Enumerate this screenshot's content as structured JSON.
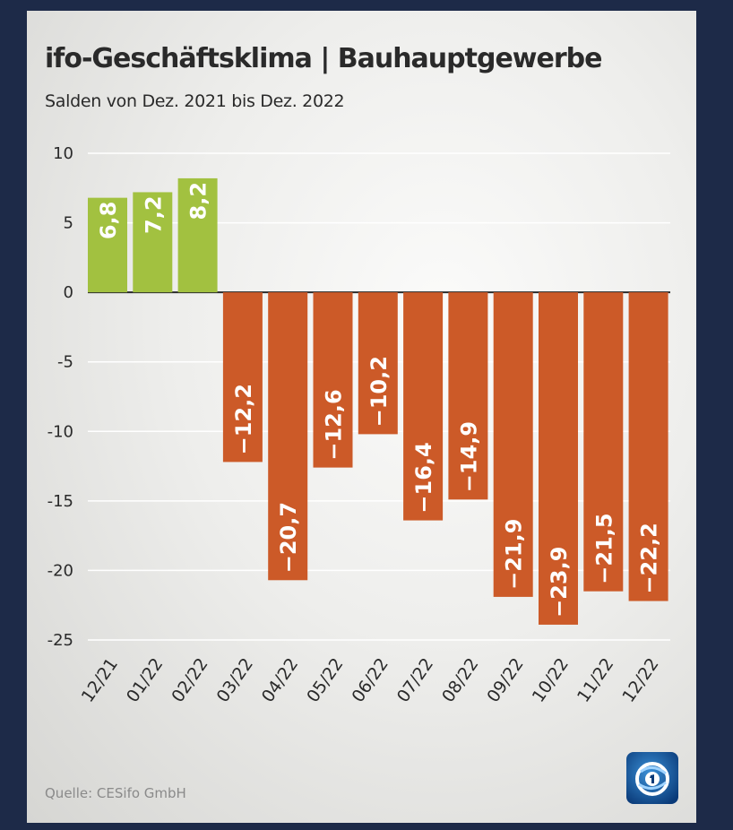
{
  "chart_data": {
    "type": "bar",
    "title": "ifo-Geschäftsklima | Bauhauptgewerbe",
    "subtitle": "Salden von Dez. 2021 bis Dez. 2022",
    "xlabel": "",
    "ylabel": "",
    "categories": [
      "12/21",
      "01/22",
      "02/22",
      "03/22",
      "04/22",
      "05/22",
      "06/22",
      "07/22",
      "08/22",
      "09/22",
      "10/22",
      "11/22",
      "12/22"
    ],
    "values": [
      6.8,
      7.2,
      8.2,
      -12.2,
      -20.7,
      -12.6,
      -10.2,
      -16.4,
      -14.9,
      -21.9,
      -23.9,
      -21.5,
      -22.2
    ],
    "value_labels": [
      "6,8",
      "7,2",
      "8,2",
      "−12,2",
      "−20,7",
      "−12,6",
      "−10,2",
      "−16,4",
      "−14,9",
      "−21,9",
      "−23,9",
      "−21,5",
      "−22,2"
    ],
    "ylim": [
      -25,
      10
    ],
    "yticks": [
      10,
      5,
      0,
      -5,
      -10,
      -15,
      -20,
      -25
    ],
    "ytick_labels": [
      "10",
      "5",
      "0",
      "-5",
      "-10",
      "-15",
      "-20",
      "-25"
    ],
    "grid": true,
    "colors": {
      "positive": "#a2c140",
      "negative": "#cc5a28"
    }
  },
  "source": "Quelle: CESifo GmbH",
  "logo": {
    "icon": "tagesschau-globe-logo"
  }
}
